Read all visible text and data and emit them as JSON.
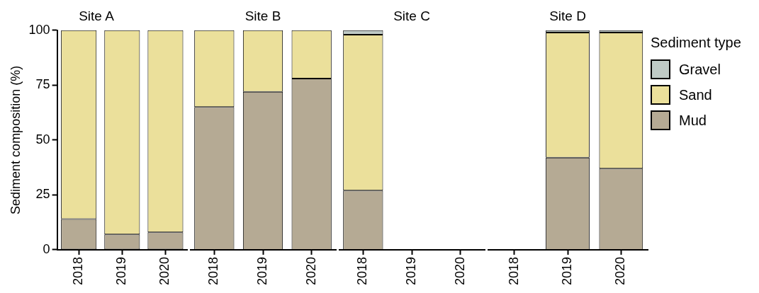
{
  "chart_data": [
    {
      "type": "bar",
      "title": "Site A",
      "ylabel": "Sediment composition (%)",
      "categories": [
        "2018",
        "2019",
        "2020"
      ],
      "stacked": true,
      "ylim": [
        0,
        100
      ],
      "yticks": [
        0,
        25,
        50,
        75,
        100
      ],
      "grid": false,
      "legend": false,
      "series": [
        {
          "color": "#b5aa94",
          "values": [
            14,
            7,
            8
          ]
        },
        {
          "color": "#ebe09b",
          "values": [
            86,
            93,
            92
          ]
        },
        {
          "color": "#bfcac6",
          "values": [
            0,
            0,
            0
          ]
        }
      ]
    },
    {
      "type": "bar",
      "title": "Site B",
      "categories": [
        "2018",
        "2019",
        "2020"
      ],
      "stacked": true,
      "ylim": [
        0,
        100
      ],
      "tick_labels": "x",
      "grid": false,
      "legend": false,
      "series": [
        {
          "color": "#b5aa94",
          "values": [
            65,
            72,
            78
          ]
        },
        {
          "color": "#ebe09b",
          "values": [
            35,
            28,
            22
          ]
        },
        {
          "color": "#bfcac6",
          "values": [
            0,
            0,
            0
          ]
        }
      ]
    },
    {
      "type": "bar",
      "title": "Site C",
      "categories": [
        "2018",
        "2019",
        "2020"
      ],
      "stacked": true,
      "ylim": [
        0,
        100
      ],
      "tick_labels": "x",
      "grid": false,
      "legend": false,
      "series": [
        {
          "color": "#b5aa94",
          "values": [
            27,
            null,
            null
          ]
        },
        {
          "color": "#ebe09b",
          "values": [
            71,
            null,
            null
          ]
        },
        {
          "color": "#bfcac6",
          "values": [
            2,
            null,
            null
          ]
        }
      ]
    },
    {
      "type": "bar",
      "title": "Site D",
      "legend_title": "Sediment type",
      "categories": [
        "2018",
        "2019",
        "2020"
      ],
      "stacked": true,
      "ylim": [
        0,
        100
      ],
      "tick_labels": "x",
      "grid": false,
      "legend": "right",
      "series": [
        {
          "name": "Mud",
          "color": "#b5aa94",
          "values": [
            null,
            42,
            37
          ]
        },
        {
          "name": "Sand",
          "color": "#ebe09b",
          "values": [
            null,
            57,
            62
          ]
        },
        {
          "name": "Gravel",
          "color": "#bfcac6",
          "values": [
            null,
            1,
            1
          ]
        }
      ]
    }
  ]
}
